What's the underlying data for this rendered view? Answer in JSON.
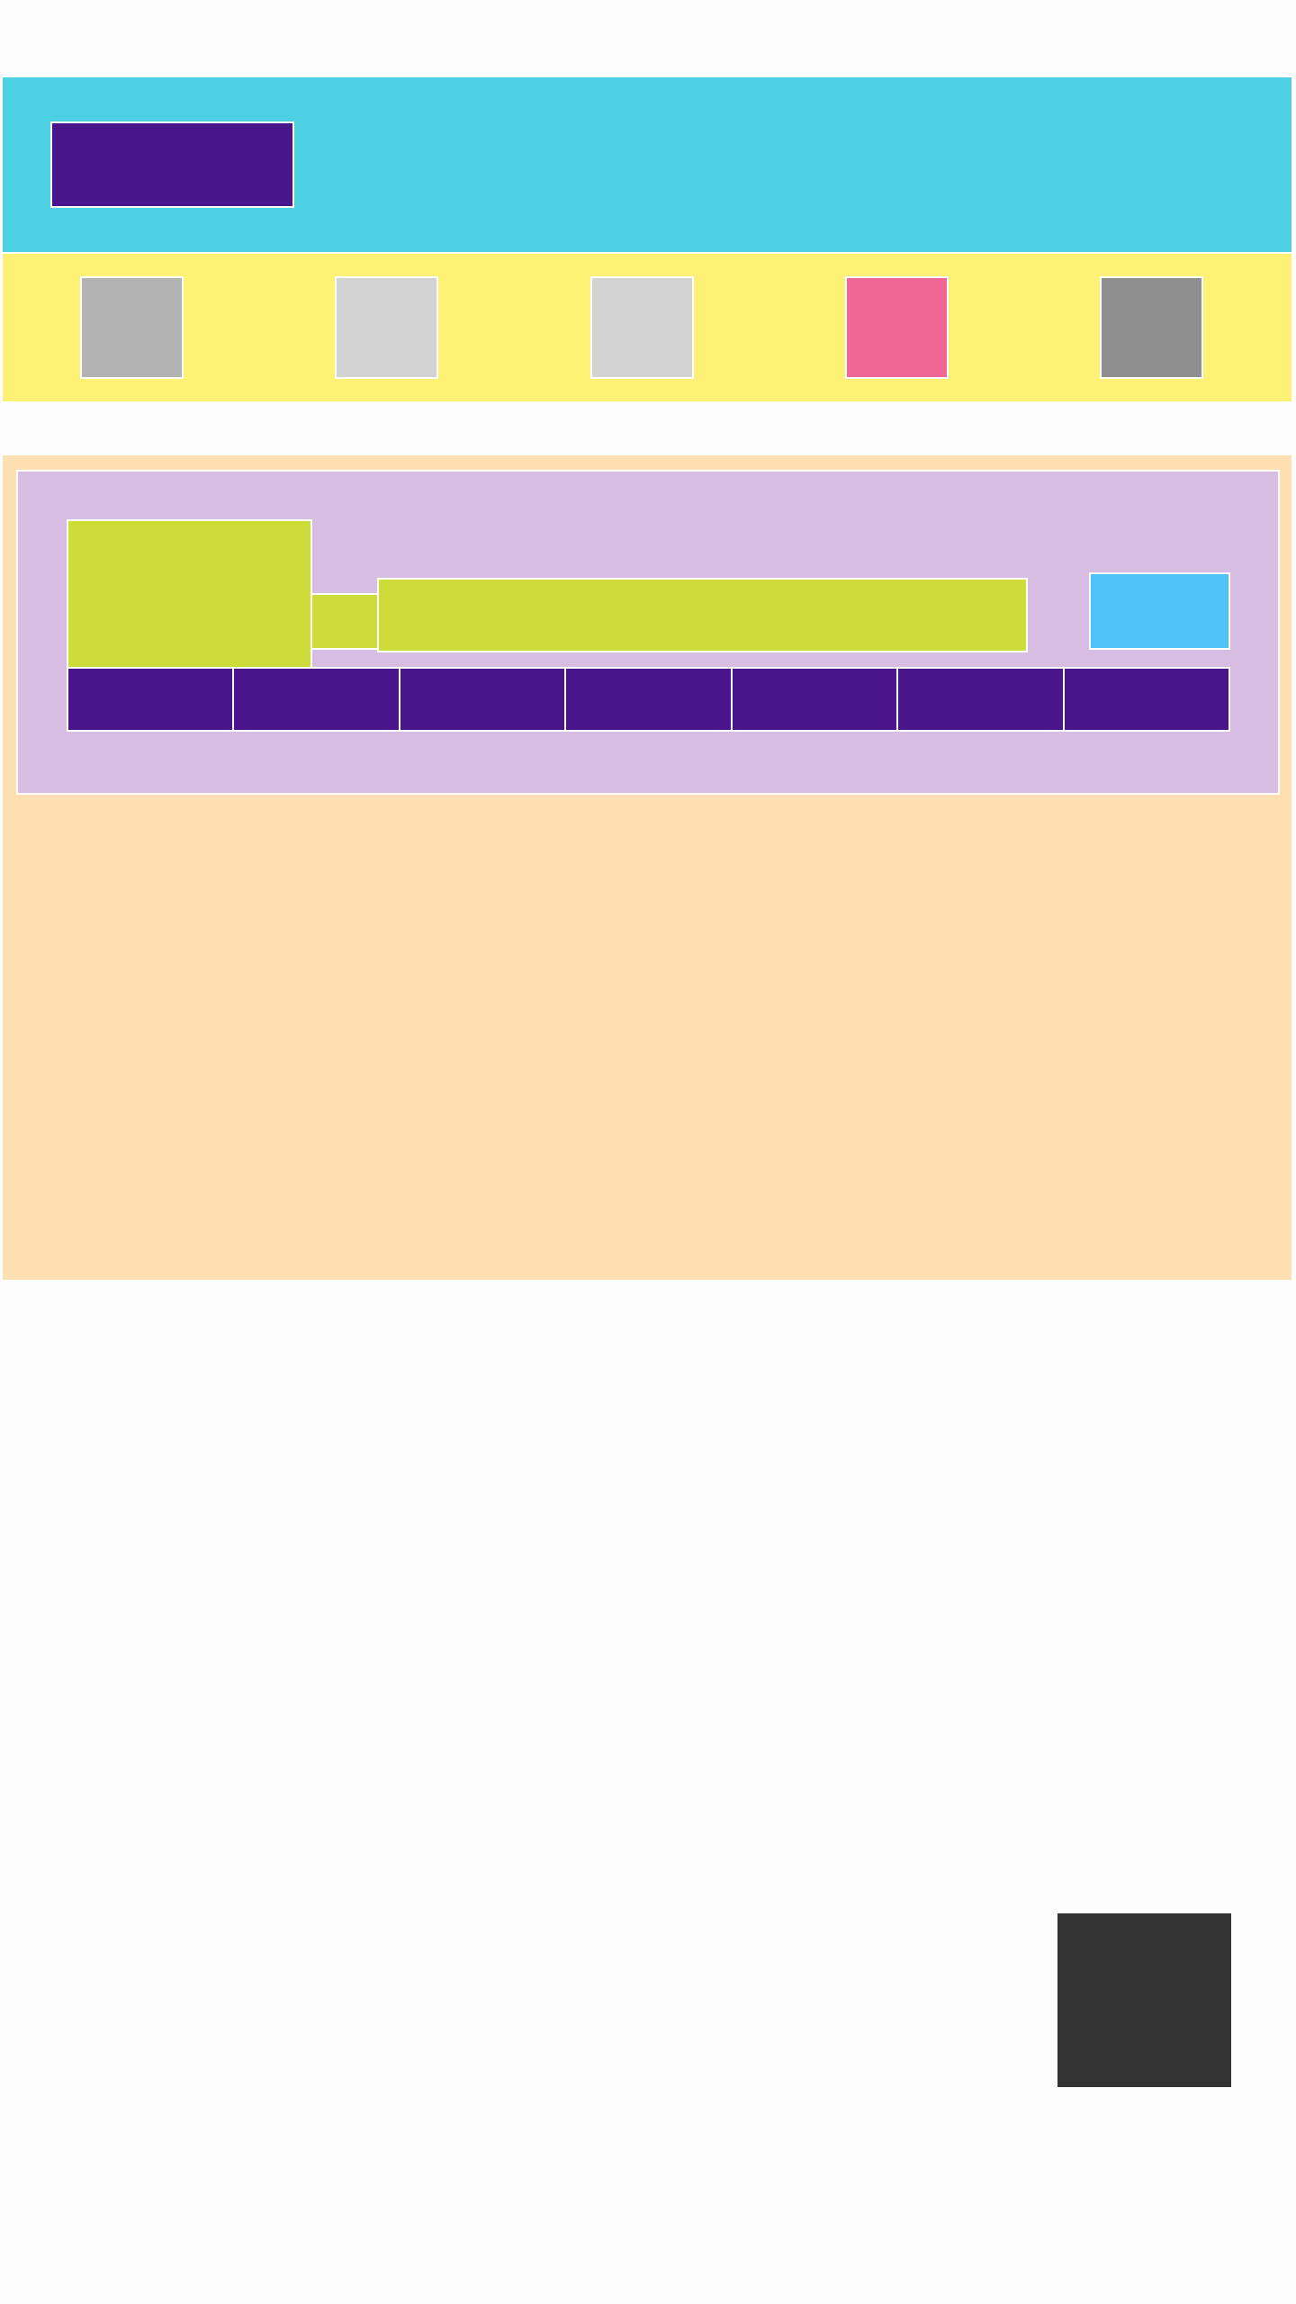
{
  "colors": {
    "page_background": "#fdfdfd",
    "header": "#4dd0e2",
    "logo_block": "#4a148c",
    "icon_strip": "#fff176",
    "main": "#fddfb2",
    "card": "#d7bde2",
    "card_elements": "#cddc39",
    "action_block": "#4fc3f7",
    "tabs": "#4a148c",
    "float_block": "#333333"
  },
  "header": {
    "logo_label": ""
  },
  "icon_strip": {
    "icons": [
      {
        "color": "#b3b3b3"
      },
      {
        "color": "#d3d3d3"
      },
      {
        "color": "#d3d3d3"
      },
      {
        "color": "#f06694"
      },
      {
        "color": "#8f8f8f"
      }
    ]
  },
  "card": {
    "search_value": "",
    "action_label": "",
    "tabs": [
      "",
      "",
      "",
      "",
      "",
      "",
      ""
    ]
  },
  "float_block": {
    "label": ""
  }
}
